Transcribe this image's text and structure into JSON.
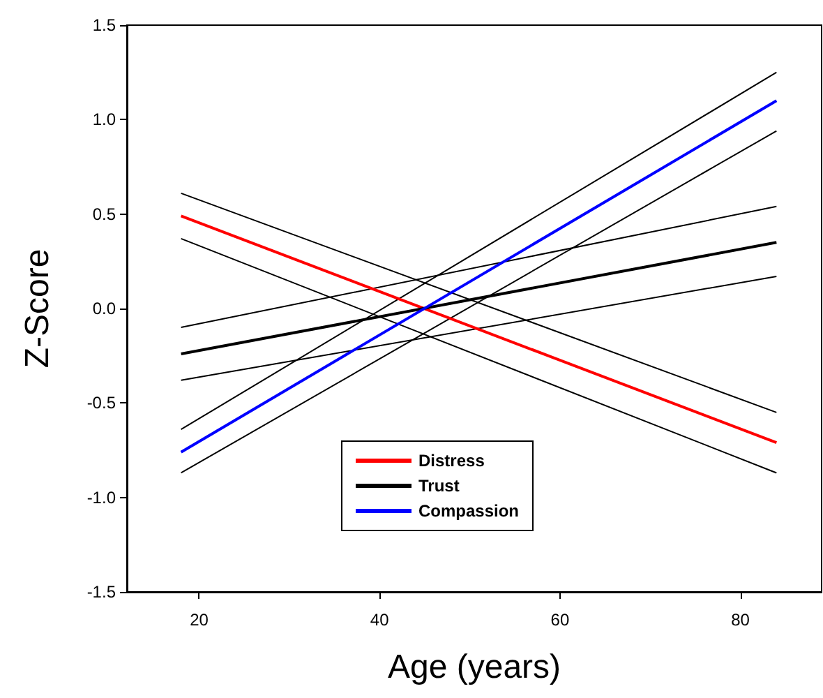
{
  "chart_data": {
    "type": "line",
    "xlabel": "Age (years)",
    "ylabel": "Z-Score",
    "x": [
      18,
      84
    ],
    "series": [
      {
        "name": "Distress",
        "color": "#ff0000",
        "values": [
          0.49,
          -0.71
        ]
      },
      {
        "name": "Trust",
        "color": "#000000",
        "values": [
          -0.24,
          0.35
        ]
      },
      {
        "name": "Compassion",
        "color": "#0000ff",
        "values": [
          -0.76,
          1.1
        ]
      },
      {
        "color": "#000000",
        "values": [
          0.37,
          -0.87
        ]
      },
      {
        "color": "#000000",
        "values": [
          0.61,
          -0.55
        ]
      },
      {
        "color": "#000000",
        "values": [
          -0.38,
          0.17
        ]
      },
      {
        "color": "#000000",
        "values": [
          -0.1,
          0.54
        ]
      },
      {
        "color": "#000000",
        "values": [
          -0.87,
          0.94
        ]
      },
      {
        "color": "#000000",
        "values": [
          -0.64,
          1.25
        ]
      }
    ],
    "xlim": [
      12,
      89
    ],
    "xticks": [
      20,
      40,
      60,
      80
    ],
    "ylim": [
      -1.5,
      1.5
    ],
    "yticks": [
      {
        "value": -1.5,
        "label": "-1.5"
      },
      {
        "value": -1,
        "label": "-1.0"
      },
      {
        "value": -0.5,
        "label": "-0.5"
      },
      {
        "value": 0,
        "label": "0.0"
      },
      {
        "value": 0.5,
        "label": "0.5"
      },
      {
        "value": 1,
        "label": "1.0"
      },
      {
        "value": 1.5,
        "label": "1.5"
      }
    ],
    "grid": false,
    "legend": "bottom",
    "marker": "none",
    "line_style": "solid"
  }
}
